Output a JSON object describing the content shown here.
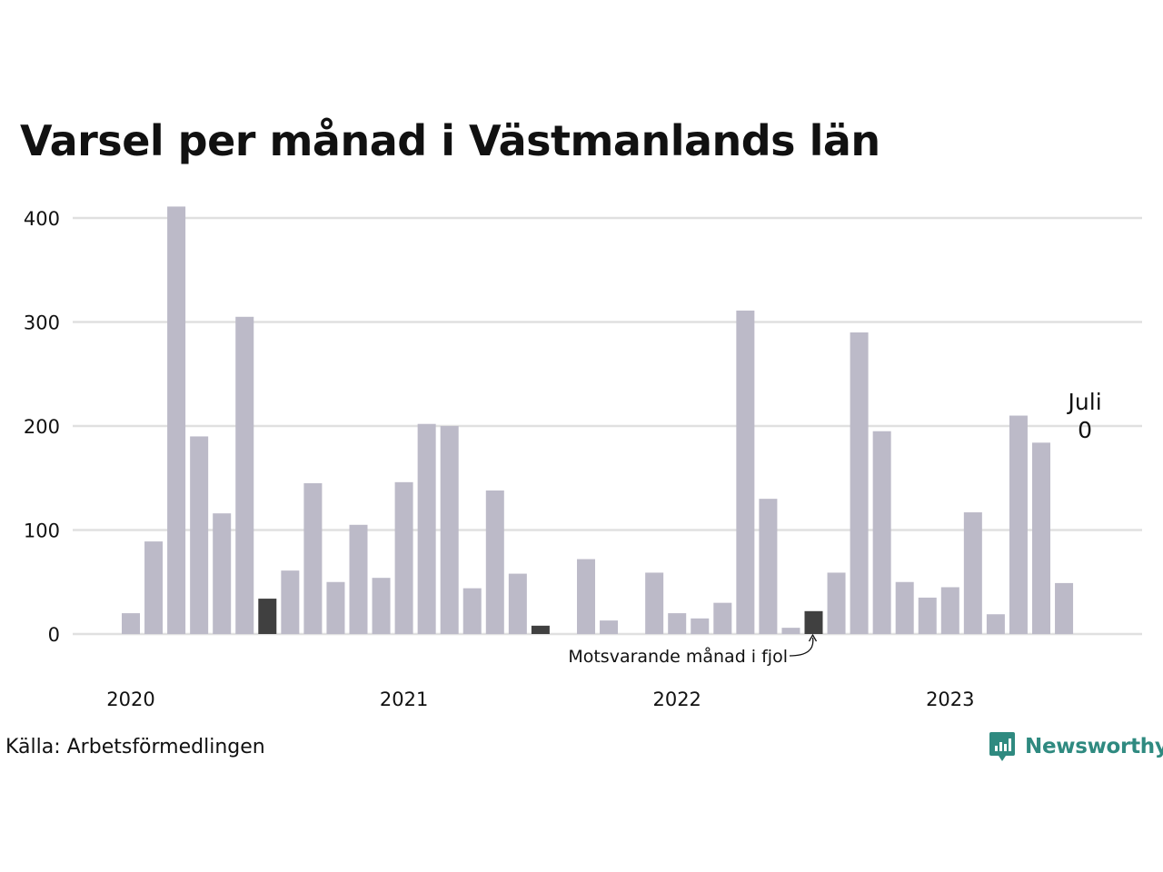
{
  "chart_data": {
    "type": "bar",
    "title": "Varsel per månad i Västmanlands län",
    "xlabel": "",
    "ylabel": "",
    "ylim": [
      0,
      400
    ],
    "yticks": [
      0,
      100,
      200,
      300,
      400
    ],
    "xtick_labels": [
      {
        "label": "2020",
        "month_index": 0
      },
      {
        "label": "2021",
        "month_index": 12
      },
      {
        "label": "2022",
        "month_index": 24
      },
      {
        "label": "2023",
        "month_index": 36
      }
    ],
    "grid": true,
    "categories": [
      "2020-01",
      "2020-02",
      "2020-03",
      "2020-04",
      "2020-05",
      "2020-06",
      "2020-07",
      "2020-08",
      "2020-09",
      "2020-10",
      "2020-11",
      "2020-12",
      "2021-01",
      "2021-02",
      "2021-03",
      "2021-04",
      "2021-05",
      "2021-06",
      "2021-07",
      "2021-08",
      "2021-09",
      "2021-10",
      "2021-11",
      "2021-12",
      "2022-01",
      "2022-02",
      "2022-03",
      "2022-04",
      "2022-05",
      "2022-06",
      "2022-07",
      "2022-08",
      "2022-09",
      "2022-10",
      "2022-11",
      "2022-12",
      "2023-01",
      "2023-02",
      "2023-03",
      "2023-04",
      "2023-05",
      "2023-06",
      "2023-07"
    ],
    "values": [
      20,
      89,
      411,
      190,
      116,
      305,
      34,
      61,
      145,
      50,
      105,
      54,
      146,
      202,
      200,
      44,
      138,
      58,
      8,
      0,
      72,
      13,
      0,
      59,
      20,
      15,
      30,
      311,
      130,
      6,
      22,
      59,
      290,
      195,
      50,
      35,
      45,
      117,
      19,
      210,
      184,
      49,
      0
    ],
    "highlighted_months": [
      "2020-07",
      "2021-07",
      "2022-07"
    ],
    "colors": {
      "bar": "#bcbac8",
      "highlight": "#404040",
      "grid": "#e0e0e0"
    },
    "annotations": {
      "last_label": "Juli",
      "last_value": "0",
      "highlight_note": "Motsvarande månad i fjol"
    }
  },
  "source": "Källa: Arbetsförmedlingen",
  "brand": {
    "name": "Newsworthy",
    "icon": "newsworthy-logo-icon",
    "color": "#2f8a80"
  }
}
